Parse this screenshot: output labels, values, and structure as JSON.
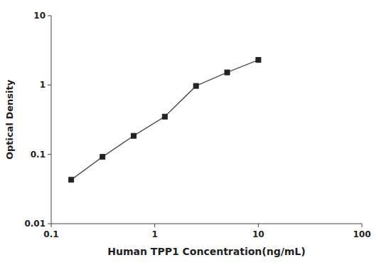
{
  "chart_data": {
    "type": "line",
    "x": [
      0.156,
      0.313,
      0.625,
      1.25,
      2.5,
      5.0,
      10.0
    ],
    "values": [
      0.043,
      0.092,
      0.185,
      0.35,
      0.97,
      1.52,
      2.3
    ],
    "xlabel": "Human TPP1 Concentration(ng/mL)",
    "ylabel": "Optical Density",
    "xlim": [
      0.1,
      100
    ],
    "ylim": [
      0.01,
      10
    ],
    "xticks": [
      0.1,
      1,
      10,
      100
    ],
    "yticks": [
      0.01,
      0.1,
      1,
      10
    ],
    "log": true,
    "grid": false,
    "color": "#555555",
    "marker": "square"
  }
}
